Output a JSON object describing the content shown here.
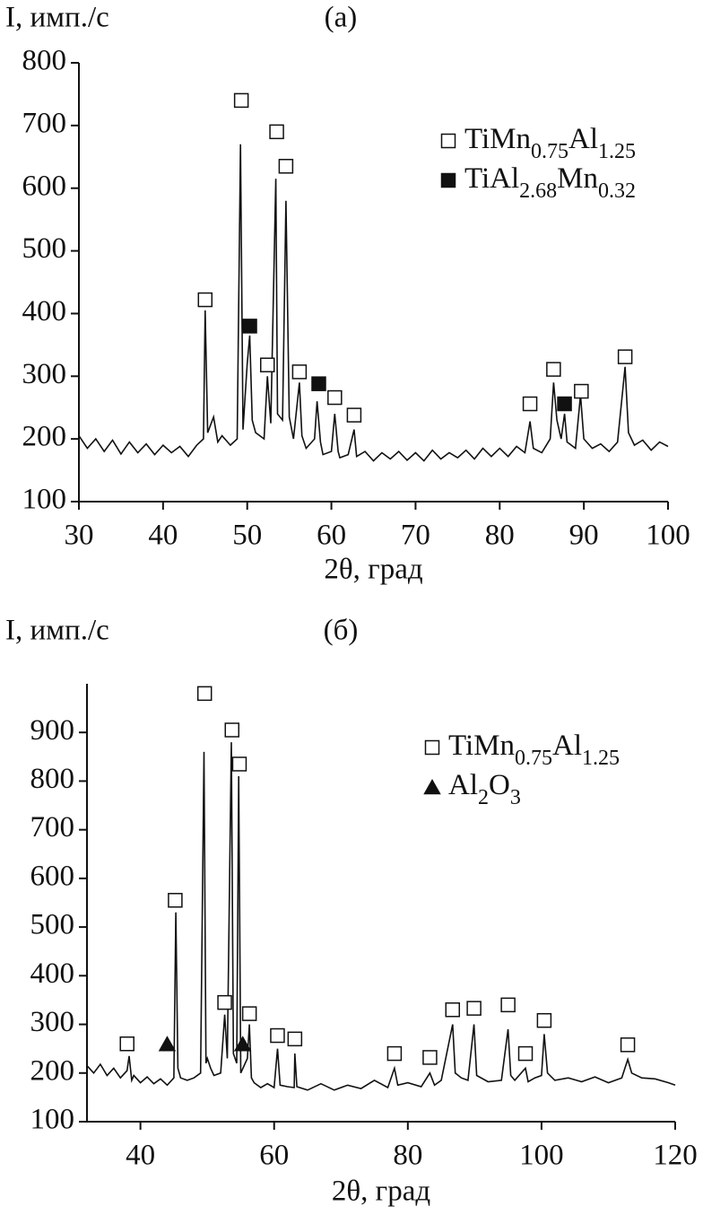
{
  "chart_data": [
    {
      "type": "line",
      "title": "(a)",
      "ylabel": "I, имп./с",
      "xlabel": "2θ, град",
      "xlim": [
        30,
        100
      ],
      "xticks": [
        30,
        40,
        50,
        60,
        70,
        80,
        90,
        100
      ],
      "ylim": [
        100,
        800
      ],
      "yticks": [
        100,
        200,
        300,
        400,
        500,
        600,
        700,
        800
      ],
      "legend": "upper right",
      "pattern": {
        "color": "#111",
        "x": [
          30,
          31,
          32,
          33,
          34,
          35,
          36,
          37,
          38,
          39,
          40,
          41,
          42,
          43,
          44,
          44.8,
          45,
          45.3,
          46,
          46.5,
          47,
          48,
          48.8,
          49.2,
          49.5,
          50,
          50.3,
          50.6,
          51,
          52,
          52.4,
          52.8,
          53.4,
          53.6,
          54.2,
          54.6,
          55,
          55.5,
          56.2,
          56.5,
          57,
          58,
          58.3,
          58.7,
          59,
          60,
          60.4,
          60.8,
          61,
          62,
          62.7,
          63,
          64,
          65,
          66,
          67,
          68,
          69,
          70,
          71,
          72,
          73,
          74,
          75,
          76,
          77,
          78,
          79,
          80,
          81,
          82,
          83,
          83.6,
          84,
          85,
          86,
          86.4,
          86.8,
          87.3,
          87.7,
          88,
          89,
          89.6,
          90,
          91,
          92,
          93,
          94,
          94.9,
          95.3,
          96,
          97,
          98,
          99,
          100
        ],
        "values": [
          205,
          185,
          200,
          180,
          198,
          176,
          195,
          178,
          192,
          175,
          190,
          178,
          188,
          172,
          190,
          200,
          405,
          210,
          235,
          195,
          205,
          190,
          200,
          670,
          215,
          320,
          365,
          230,
          210,
          200,
          300,
          225,
          615,
          240,
          230,
          580,
          235,
          200,
          290,
          205,
          185,
          200,
          260,
          195,
          175,
          180,
          240,
          180,
          170,
          175,
          215,
          172,
          180,
          165,
          178,
          168,
          180,
          166,
          178,
          165,
          182,
          168,
          178,
          170,
          182,
          168,
          185,
          172,
          185,
          172,
          188,
          178,
          228,
          185,
          178,
          200,
          290,
          230,
          200,
          240,
          195,
          185,
          270,
          200,
          185,
          192,
          180,
          195,
          315,
          210,
          190,
          198,
          182,
          195,
          188
        ]
      },
      "series": [
        {
          "name": "TiMn0.75Al1.25",
          "symbol": "open-square",
          "color": "#111",
          "x": [
            45,
            49.3,
            52.4,
            53.5,
            54.6,
            56.2,
            60.4,
            62.7,
            83.6,
            86.4,
            89.7,
            94.9
          ],
          "values": [
            422,
            740,
            318,
            690,
            635,
            307,
            266,
            238,
            256,
            311,
            276,
            331
          ]
        },
        {
          "name": "TiAl2.68Mn0.32",
          "symbol": "filled-square",
          "color": "#111",
          "x": [
            50.3,
            58.5,
            87.7
          ],
          "values": [
            380,
            288,
            256
          ]
        }
      ]
    },
    {
      "type": "line",
      "title": "(б)",
      "ylabel": "I, имп./с",
      "xlabel": "2θ, град",
      "xlim": [
        32,
        120
      ],
      "xticks": [
        40,
        60,
        80,
        100,
        120
      ],
      "ylim": [
        100,
        1000
      ],
      "yticks": [
        100,
        200,
        300,
        400,
        500,
        600,
        700,
        800,
        900
      ],
      "legend": "upper right",
      "pattern": {
        "color": "#111",
        "x": [
          32,
          33,
          34,
          35,
          36,
          37,
          38,
          38.3,
          38.7,
          39,
          40,
          41,
          42,
          43,
          44,
          45,
          45.3,
          45.6,
          46,
          47,
          48,
          49,
          49.5,
          49.8,
          50,
          50.5,
          51,
          52,
          52.6,
          53,
          53.6,
          53.9,
          54.4,
          54.7,
          55,
          56,
          56.3,
          56.6,
          57,
          58,
          59,
          60,
          60.5,
          60.9,
          62,
          63,
          63.1,
          63.4,
          65,
          67,
          69,
          71,
          73,
          75,
          77,
          78,
          78.5,
          80,
          82,
          83.3,
          84,
          85,
          86.7,
          87.1,
          88,
          89,
          89.9,
          90.3,
          92,
          94,
          95,
          95.4,
          96,
          97.6,
          98,
          99,
          100,
          100.4,
          100.9,
          102,
          104,
          106,
          108,
          110,
          112,
          112.9,
          113.5,
          115,
          117,
          119,
          120
        ],
        "values": [
          215,
          200,
          218,
          195,
          210,
          190,
          205,
          235,
          185,
          195,
          180,
          192,
          178,
          188,
          175,
          190,
          530,
          210,
          190,
          185,
          190,
          200,
          860,
          220,
          230,
          210,
          195,
          200,
          320,
          230,
          880,
          240,
          220,
          810,
          200,
          230,
          300,
          190,
          180,
          170,
          178,
          170,
          250,
          175,
          172,
          170,
          240,
          172,
          165,
          178,
          165,
          175,
          168,
          185,
          170,
          210,
          175,
          180,
          172,
          200,
          175,
          185,
          300,
          200,
          190,
          185,
          300,
          195,
          182,
          185,
          290,
          195,
          185,
          210,
          182,
          190,
          195,
          280,
          200,
          185,
          190,
          182,
          192,
          180,
          190,
          228,
          200,
          190,
          188,
          180,
          175
        ]
      },
      "series": [
        {
          "name": "TiMn0.75Al1.25",
          "symbol": "open-square",
          "color": "#111",
          "x": [
            38,
            45.2,
            49.6,
            52.6,
            53.7,
            54.8,
            56.3,
            60.5,
            63.1,
            78,
            83.3,
            86.7,
            89.9,
            95,
            97.6,
            100.4,
            112.9
          ],
          "values": [
            260,
            555,
            980,
            345,
            905,
            835,
            322,
            277,
            270,
            240,
            232,
            330,
            333,
            340,
            240,
            308,
            258
          ]
        },
        {
          "name": "Al2O3",
          "symbol": "filled-triangle",
          "color": "#111",
          "x": [
            44,
            55.3
          ],
          "values": [
            260,
            260
          ]
        }
      ]
    }
  ]
}
